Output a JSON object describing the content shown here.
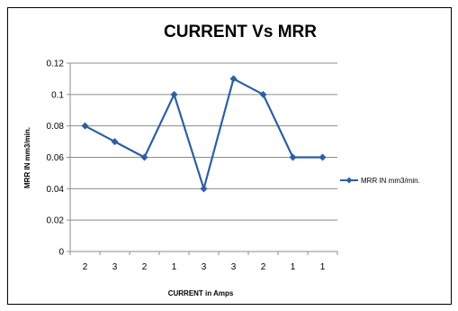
{
  "chart_data": {
    "type": "line",
    "title": "CURRENT Vs  MRR",
    "xlabel": "CURRENT  in Amps",
    "ylabel": "MRR IN mm3/min.",
    "categories": [
      "2",
      "3",
      "2",
      "1",
      "3",
      "3",
      "2",
      "1",
      "1"
    ],
    "series": [
      {
        "name": "MRR IN mm3/min.",
        "values": [
          0.08,
          0.07,
          0.06,
          0.1,
          0.04,
          0.11,
          0.1,
          0.06,
          0.06
        ],
        "color": "#2e5fa3"
      }
    ],
    "ylim": [
      0,
      0.12
    ],
    "yticks": [
      "0",
      "0.02",
      "0.04",
      "0.06",
      "0.08",
      "0.1",
      "0.12"
    ],
    "grid": true,
    "legend_position": "right"
  }
}
